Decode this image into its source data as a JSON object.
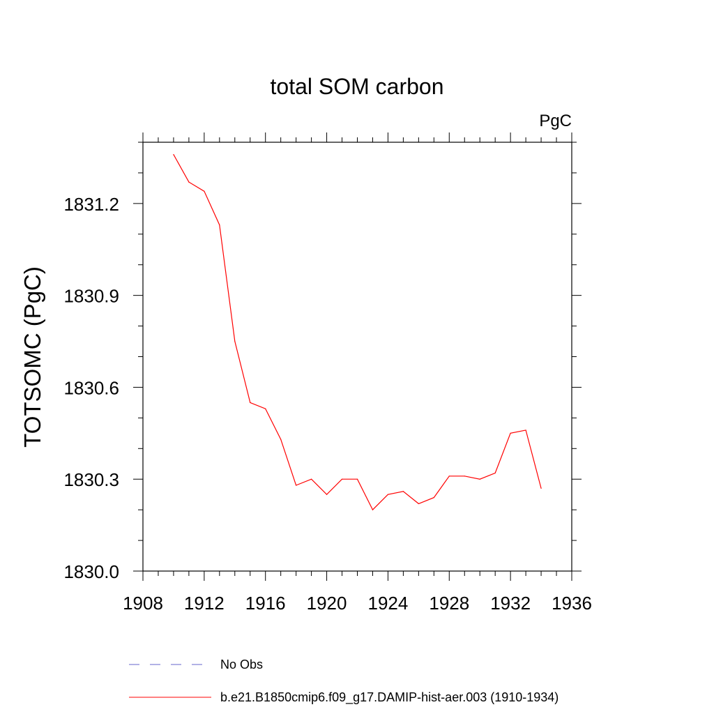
{
  "chart_data": {
    "type": "line",
    "title": "total SOM carbon",
    "units_label": "PgC",
    "ylabel": "TOTSOMC  (PgC)",
    "xlabel": "",
    "xlim": [
      1908,
      1936
    ],
    "ylim": [
      1830.0,
      1831.4
    ],
    "x_ticks": [
      1908,
      1912,
      1916,
      1920,
      1924,
      1928,
      1932,
      1936
    ],
    "y_ticks": [
      "1830.0",
      "1830.3",
      "1830.6",
      "1830.9",
      "1831.2"
    ],
    "grid": false,
    "series": [
      {
        "name": "b.e21.B1850cmip6.f09_g17.DAMIP-hist-aer.003 (1910-1934)",
        "color": "#ff0000",
        "x": [
          1910,
          1911,
          1912,
          1913,
          1914,
          1915,
          1916,
          1917,
          1918,
          1919,
          1920,
          1921,
          1922,
          1923,
          1924,
          1925,
          1926,
          1927,
          1928,
          1929,
          1930,
          1931,
          1932,
          1933,
          1934
        ],
        "y": [
          1831.36,
          1831.27,
          1831.24,
          1831.13,
          1830.75,
          1830.55,
          1830.53,
          1830.43,
          1830.28,
          1830.3,
          1830.25,
          1830.3,
          1830.3,
          1830.2,
          1830.25,
          1830.26,
          1830.22,
          1830.24,
          1830.31,
          1830.31,
          1830.3,
          1830.32,
          1830.45,
          1830.46,
          1830.27
        ]
      }
    ],
    "legend": {
      "placement": "bottom",
      "entries": [
        {
          "label": "No Obs",
          "color": "#6666cc",
          "style": "dashed"
        },
        {
          "label": "b.e21.B1850cmip6.f09_g17.DAMIP-hist-aer.003 (1910-1934)",
          "color": "#ff0000",
          "style": "solid"
        }
      ]
    }
  }
}
